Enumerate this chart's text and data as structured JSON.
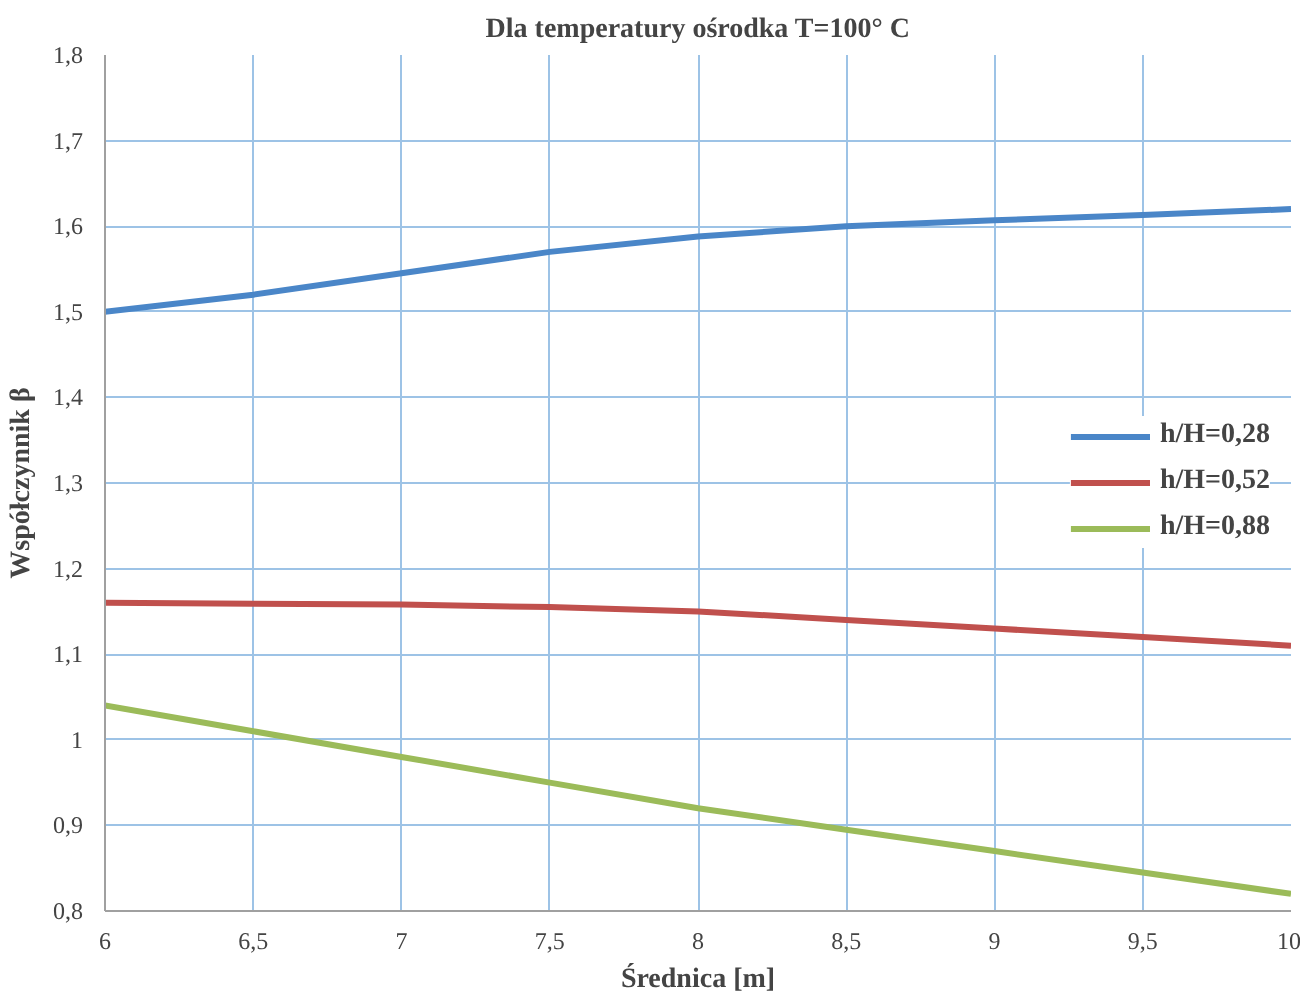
{
  "chart_data": {
    "type": "line",
    "title": "Dla temperatury ośrodka T=100° C",
    "xlabel": "Średnica [m]",
    "ylabel": "Współczynnik β",
    "x": [
      6,
      6.5,
      7,
      7.5,
      8,
      8.5,
      9,
      9.5,
      10
    ],
    "series": [
      {
        "name": "h/H=0,28",
        "color": "#4a86c8",
        "values": [
          1.5,
          1.52,
          1.545,
          1.57,
          1.588,
          1.6,
          1.607,
          1.613,
          1.62
        ]
      },
      {
        "name": "h/H=0,52",
        "color": "#c0504d",
        "values": [
          1.16,
          1.159,
          1.158,
          1.155,
          1.15,
          1.14,
          1.13,
          1.12,
          1.11
        ]
      },
      {
        "name": "h/H=0,88",
        "color": "#9bbb59",
        "values": [
          1.04,
          1.01,
          0.98,
          0.95,
          0.92,
          0.895,
          0.87,
          0.845,
          0.82
        ]
      }
    ],
    "xlim": [
      6,
      10
    ],
    "ylim": [
      0.8,
      1.8
    ],
    "xticks": [
      6,
      {
        "value": 6.5,
        "label": "6,5"
      },
      7,
      {
        "value": 7.5,
        "label": "7,5"
      },
      8,
      {
        "value": 8.5,
        "label": "8,5"
      },
      9,
      {
        "value": 9.5,
        "label": "9,5"
      },
      10
    ],
    "yticks": [
      {
        "value": 0.8,
        "label": "0,8"
      },
      {
        "value": 0.9,
        "label": "0,9"
      },
      1,
      {
        "value": 1.1,
        "label": "1,1"
      },
      {
        "value": 1.2,
        "label": "1,2"
      },
      {
        "value": 1.3,
        "label": "1,3"
      },
      {
        "value": 1.4,
        "label": "1,4"
      },
      {
        "value": 1.5,
        "label": "1,5"
      },
      {
        "value": 1.6,
        "label": "1,6"
      },
      {
        "value": 1.7,
        "label": "1,7"
      },
      {
        "value": 1.8,
        "label": "1,8"
      }
    ],
    "grid": true,
    "legend": "right",
    "marker": "none",
    "line_style": "solid"
  }
}
